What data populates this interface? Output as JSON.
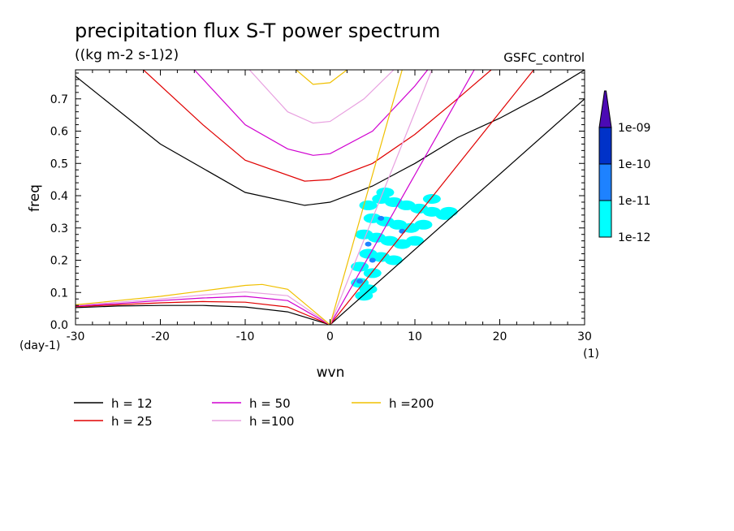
{
  "chart_data": {
    "type": "line",
    "title": "precipitation flux S-T power spectrum",
    "subtitle": "((kg m-2 s-1)2)",
    "dataset_label": "GSFC_control",
    "xlabel": "wvn",
    "ylabel": "freq",
    "x_unit": "(1)",
    "y_unit": "(day-1)",
    "xlim": [
      -30,
      30
    ],
    "ylim": [
      0,
      0.79
    ],
    "xticks": [
      -30,
      -20,
      -10,
      0,
      10,
      20,
      30
    ],
    "xtick_labels": [
      "-30",
      "-20",
      "-10",
      "0",
      "10",
      "20",
      "30"
    ],
    "yticks": [
      0,
      0.1,
      0.2,
      0.3,
      0.4,
      0.5,
      0.6,
      0.7
    ],
    "ytick_labels": [
      "0.0",
      "0.1",
      "0.2",
      "0.3",
      "0.4",
      "0.5",
      "0.6",
      "0.7"
    ],
    "legend_position": "bottom",
    "series": [
      {
        "name": "h = 12",
        "color": "#000000",
        "kelvin": {
          "x": [
            0,
            30
          ],
          "y": [
            0,
            0.7
          ]
        },
        "ig": {
          "x": [
            -30,
            -20,
            -10,
            -3,
            0,
            5,
            10,
            15,
            20,
            25,
            30
          ],
          "y": [
            0.77,
            0.56,
            0.41,
            0.37,
            0.38,
            0.43,
            0.5,
            0.58,
            0.64,
            0.71,
            0.79
          ]
        },
        "er": {
          "x": [
            -30,
            -25,
            -20,
            -15,
            -10,
            -5,
            0
          ],
          "y": [
            0.053,
            0.058,
            0.06,
            0.06,
            0.055,
            0.04,
            0
          ]
        }
      },
      {
        "name": "h = 25",
        "color": "#e00000",
        "kelvin": {
          "x": [
            0,
            24
          ],
          "y": [
            0,
            0.79
          ]
        },
        "ig": {
          "x": [
            -22,
            -15,
            -10,
            -3,
            0,
            5,
            10,
            15,
            19
          ],
          "y": [
            0.79,
            0.62,
            0.51,
            0.445,
            0.45,
            0.5,
            0.59,
            0.7,
            0.79
          ]
        },
        "er": {
          "x": [
            -30,
            -25,
            -20,
            -15,
            -10,
            -5,
            0
          ],
          "y": [
            0.056,
            0.062,
            0.068,
            0.072,
            0.07,
            0.055,
            0
          ]
        }
      },
      {
        "name": "h = 50",
        "color": "#d000d0",
        "kelvin": {
          "x": [
            0,
            17
          ],
          "y": [
            0,
            0.79
          ]
        },
        "ig": {
          "x": [
            -16,
            -10,
            -5,
            -2,
            0,
            5,
            10,
            11.5
          ],
          "y": [
            0.79,
            0.62,
            0.545,
            0.525,
            0.53,
            0.6,
            0.74,
            0.79
          ]
        },
        "er": {
          "x": [
            -30,
            -25,
            -20,
            -15,
            -10,
            -5,
            0
          ],
          "y": [
            0.058,
            0.066,
            0.075,
            0.083,
            0.088,
            0.075,
            0
          ]
        }
      },
      {
        "name": "h =100",
        "color": "#e8a0e0",
        "kelvin": {
          "x": [
            0,
            12
          ],
          "y": [
            0,
            0.79
          ]
        },
        "ig": {
          "x": [
            -9.5,
            -5,
            -2,
            0,
            4,
            7.5
          ],
          "y": [
            0.79,
            0.66,
            0.625,
            0.63,
            0.7,
            0.79
          ]
        },
        "er": {
          "x": [
            -30,
            -25,
            -20,
            -15,
            -10,
            -5,
            0
          ],
          "y": [
            0.06,
            0.07,
            0.08,
            0.092,
            0.102,
            0.09,
            0
          ]
        }
      },
      {
        "name": "h =200",
        "color": "#f0c000",
        "kelvin": {
          "x": [
            0,
            8.5
          ],
          "y": [
            0,
            0.79
          ]
        },
        "ig": {
          "x": [
            -4,
            -2,
            0,
            2
          ],
          "y": [
            0.79,
            0.745,
            0.75,
            0.79
          ]
        },
        "er": {
          "x": [
            -30,
            -25,
            -20,
            -15,
            -10,
            -8,
            -5,
            0
          ],
          "y": [
            0.062,
            0.075,
            0.088,
            0.105,
            0.122,
            0.125,
            0.11,
            0
          ]
        }
      }
    ],
    "colorbar": {
      "levels": [
        "1e-12",
        "1e-11",
        "1e-10",
        "1e-09"
      ],
      "colors": [
        "#00ffff",
        "#1e82ff",
        "#0032c8",
        "#4b0ab4"
      ]
    },
    "contour_blobs": {
      "level_1e-12": {
        "color": "#00ffff",
        "cells": [
          [
            4.5,
            0.37
          ],
          [
            6,
            0.39
          ],
          [
            7.5,
            0.38
          ],
          [
            9,
            0.37
          ],
          [
            10.5,
            0.36
          ],
          [
            12,
            0.35
          ],
          [
            13.5,
            0.34
          ],
          [
            5,
            0.33
          ],
          [
            6.5,
            0.32
          ],
          [
            8,
            0.31
          ],
          [
            9.5,
            0.3
          ],
          [
            11,
            0.31
          ],
          [
            4,
            0.28
          ],
          [
            5.5,
            0.27
          ],
          [
            7,
            0.26
          ],
          [
            8.5,
            0.25
          ],
          [
            10,
            0.26
          ],
          [
            4.5,
            0.22
          ],
          [
            6,
            0.21
          ],
          [
            7.5,
            0.2
          ],
          [
            3.5,
            0.18
          ],
          [
            5,
            0.16
          ],
          [
            3.5,
            0.13
          ],
          [
            4.5,
            0.11
          ],
          [
            4,
            0.09
          ],
          [
            14,
            0.35
          ],
          [
            12,
            0.39
          ],
          [
            6.5,
            0.41
          ]
        ]
      },
      "level_1e-11": {
        "color": "#1e82ff",
        "cells": [
          [
            6,
            0.33
          ],
          [
            5,
            0.2
          ],
          [
            3.5,
            0.135
          ],
          [
            8.5,
            0.29
          ],
          [
            4.5,
            0.25
          ]
        ]
      }
    }
  }
}
